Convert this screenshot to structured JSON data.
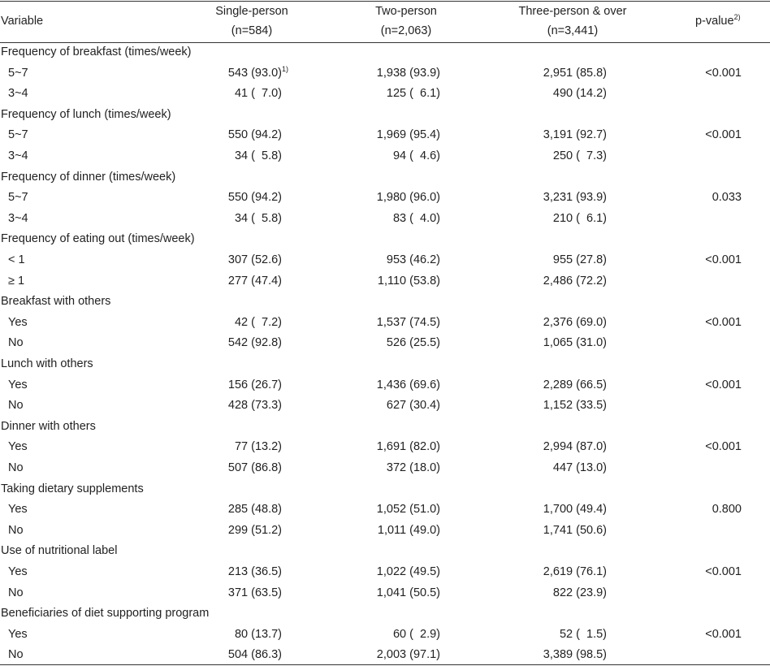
{
  "header": {
    "variable": "Variable",
    "groups": [
      {
        "name": "Single-person",
        "n": "(n=584)"
      },
      {
        "name": "Two-person",
        "n": "(n=2,063)"
      },
      {
        "name": "Three-person & over",
        "n": "(n=3,441)"
      }
    ],
    "pvalue": "p-value",
    "pvalue_note": "2)"
  },
  "sections": [
    {
      "title": "Frequency of breakfast (times/week)",
      "rows": [
        {
          "label": "5~7",
          "single": "543 (93.0)",
          "single_note": "1)",
          "two": "1,938 (93.9)",
          "three": "2,951 (85.8)",
          "p": "<0.001"
        },
        {
          "label": "3~4",
          "single": "41 (  7.0)",
          "two": "125 (  6.1)",
          "three": "490 (14.2)",
          "p": ""
        }
      ]
    },
    {
      "title": "Frequency of lunch (times/week)",
      "rows": [
        {
          "label": "5~7",
          "single": "550 (94.2)",
          "two": "1,969 (95.4)",
          "three": "3,191 (92.7)",
          "p": "<0.001"
        },
        {
          "label": "3~4",
          "single": "34 (  5.8)",
          "two": "94 (  4.6)",
          "three": "250 (  7.3)",
          "p": ""
        }
      ]
    },
    {
      "title": "Frequency of dinner (times/week)",
      "rows": [
        {
          "label": "5~7",
          "single": "550 (94.2)",
          "two": "1,980 (96.0)",
          "three": "3,231 (93.9)",
          "p": "0.033"
        },
        {
          "label": "3~4",
          "single": "34 (  5.8)",
          "two": "83 (  4.0)",
          "three": "210 (  6.1)",
          "p": ""
        }
      ]
    },
    {
      "title": "Frequency of eating out (times/week)",
      "rows": [
        {
          "label": "< 1",
          "single": "307 (52.6)",
          "two": "953 (46.2)",
          "three": "955 (27.8)",
          "p": "<0.001"
        },
        {
          "label": "≥ 1",
          "single": "277 (47.4)",
          "two": "1,110 (53.8)",
          "three": "2,486 (72.2)",
          "p": ""
        }
      ]
    },
    {
      "title": "Breakfast with others",
      "rows": [
        {
          "label": "Yes",
          "single": "42 (  7.2)",
          "two": "1,537 (74.5)",
          "three": "2,376 (69.0)",
          "p": "<0.001"
        },
        {
          "label": "No",
          "single": "542 (92.8)",
          "two": "526 (25.5)",
          "three": "1,065 (31.0)",
          "p": ""
        }
      ]
    },
    {
      "title": "Lunch with others",
      "rows": [
        {
          "label": "Yes",
          "single": "156 (26.7)",
          "two": "1,436 (69.6)",
          "three": "2,289 (66.5)",
          "p": "<0.001"
        },
        {
          "label": "No",
          "single": "428 (73.3)",
          "two": "627 (30.4)",
          "three": "1,152 (33.5)",
          "p": ""
        }
      ]
    },
    {
      "title": "Dinner with others",
      "rows": [
        {
          "label": "Yes",
          "single": "77 (13.2)",
          "two": "1,691 (82.0)",
          "three": "2,994 (87.0)",
          "p": "<0.001"
        },
        {
          "label": "No",
          "single": "507 (86.8)",
          "two": "372 (18.0)",
          "three": "447 (13.0)",
          "p": ""
        }
      ]
    },
    {
      "title": "Taking dietary supplements",
      "rows": [
        {
          "label": "Yes",
          "single": "285 (48.8)",
          "two": "1,052 (51.0)",
          "three": "1,700 (49.4)",
          "p": "0.800"
        },
        {
          "label": "No",
          "single": "299 (51.2)",
          "two": "1,011 (49.0)",
          "three": "1,741 (50.6)",
          "p": ""
        }
      ]
    },
    {
      "title": "Use of nutritional label",
      "rows": [
        {
          "label": "Yes",
          "single": "213 (36.5)",
          "two": "1,022 (49.5)",
          "three": "2,619 (76.1)",
          "p": "<0.001"
        },
        {
          "label": "No",
          "single": "371 (63.5)",
          "two": "1,041 (50.5)",
          "three": "822 (23.9)",
          "p": ""
        }
      ]
    },
    {
      "title": "Beneficiaries of diet supporting program",
      "rows": [
        {
          "label": "Yes",
          "single": "80 (13.7)",
          "two": "60 (  2.9)",
          "three": "52 (  1.5)",
          "p": "<0.001"
        },
        {
          "label": "No",
          "single": "504 (86.3)",
          "two": "2,003 (97.1)",
          "three": "3,389 (98.5)",
          "p": ""
        }
      ]
    }
  ]
}
